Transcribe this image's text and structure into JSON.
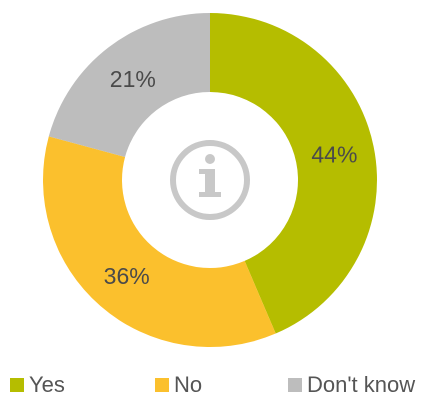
{
  "chart_data": {
    "type": "pie",
    "subtype": "donut",
    "center_icon": "info-icon",
    "slices": [
      {
        "label": "Yes",
        "value": 44,
        "display": "44%",
        "color": "#b5bd00"
      },
      {
        "label": "No",
        "value": 36,
        "display": "36%",
        "color": "#fbc02d"
      },
      {
        "label": "Don't know",
        "value": 21,
        "display": "21%",
        "color": "#bdbdbd"
      }
    ],
    "legend_position": "bottom"
  }
}
